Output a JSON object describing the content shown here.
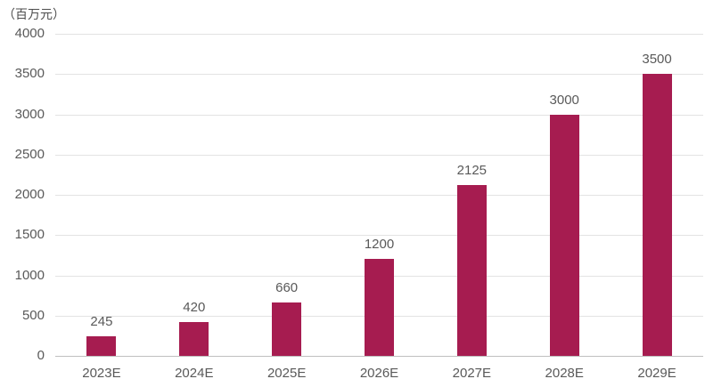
{
  "chart_data": {
    "type": "bar",
    "title": "",
    "unit_label": "（百万元）",
    "xlabel": "",
    "ylabel": "（百万元）",
    "categories": [
      "2023E",
      "2024E",
      "2025E",
      "2026E",
      "2027E",
      "2028E",
      "2029E"
    ],
    "values": [
      245,
      420,
      660,
      1200,
      2125,
      3000,
      3500
    ],
    "ylim": [
      0,
      4000
    ],
    "ytick_step": 500,
    "ytick_labels": [
      "0",
      "500",
      "1000",
      "1500",
      "2000",
      "2500",
      "3000",
      "3500",
      "4000"
    ],
    "grid": "horizontal",
    "legend_position": "none",
    "colors": {
      "bar": "#A61C50",
      "gridline": "#E3E3E3",
      "baseline": "#BFBFBF",
      "text": "#595959",
      "background": "#FFFFFF"
    }
  }
}
